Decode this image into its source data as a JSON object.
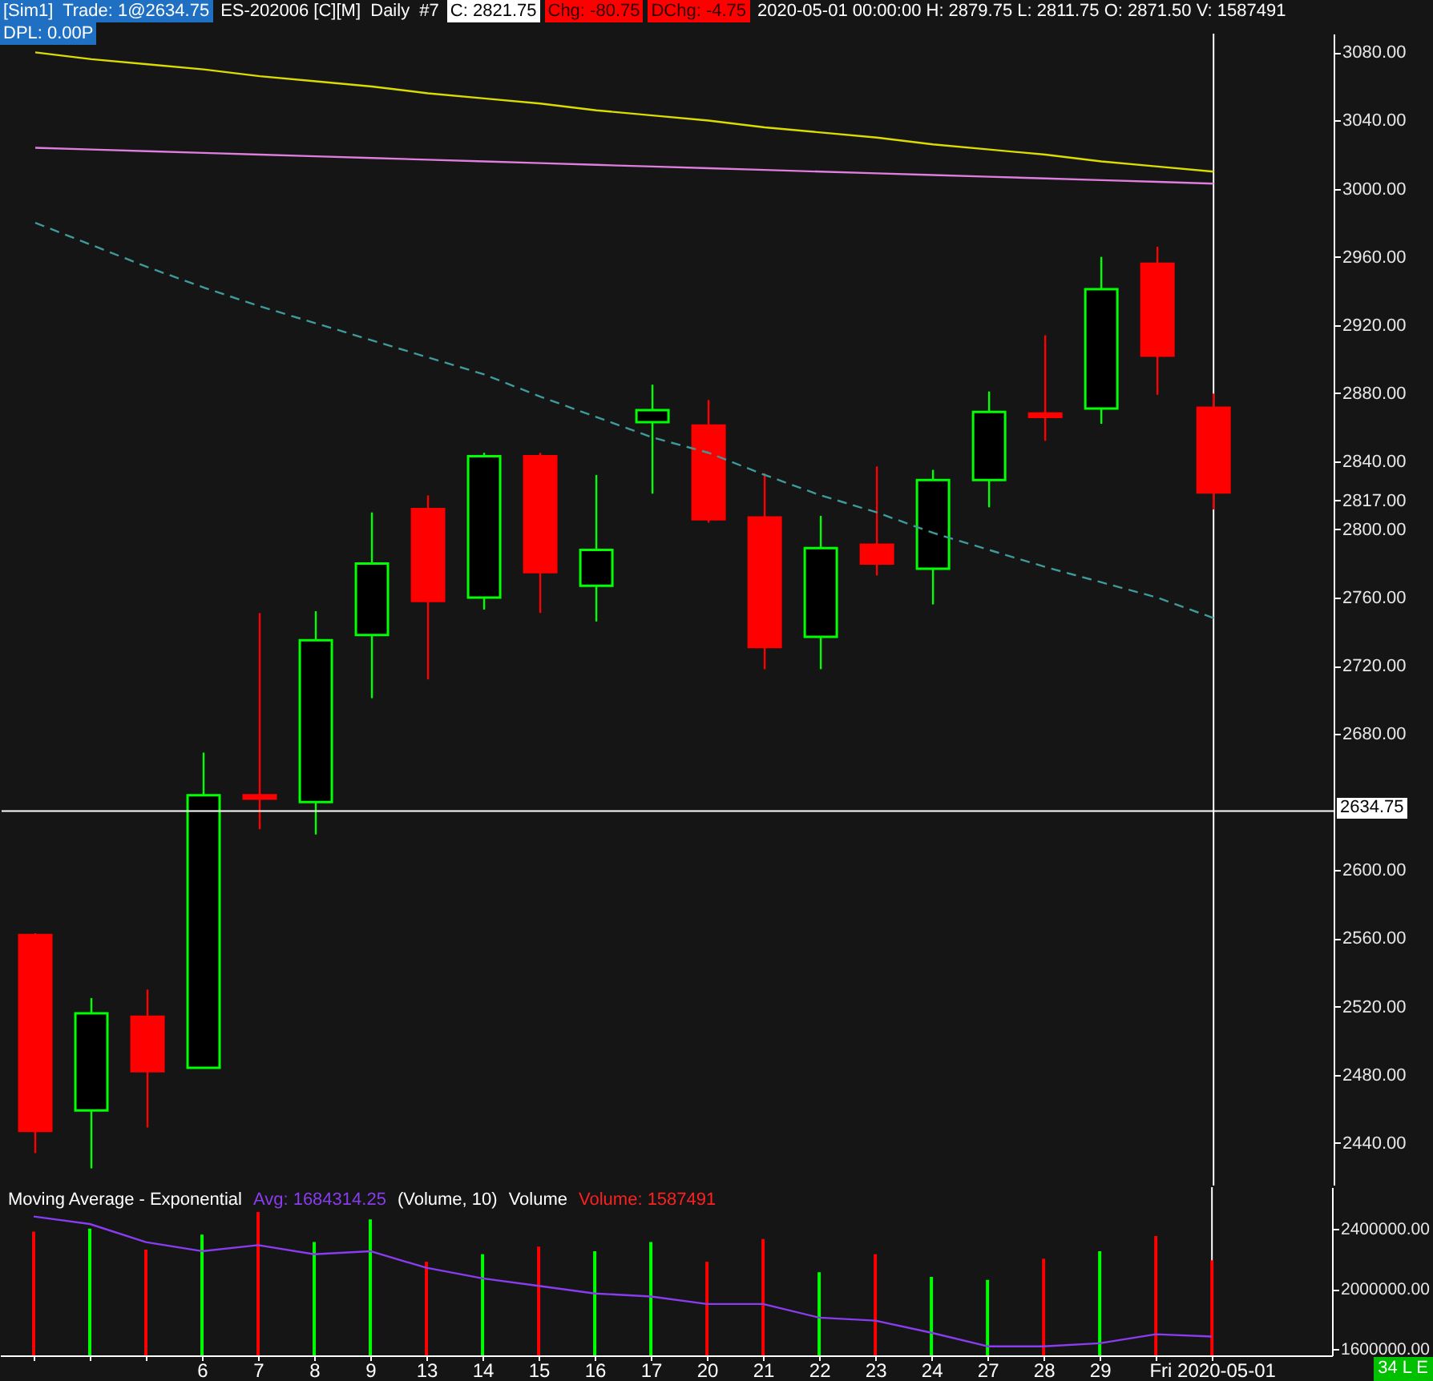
{
  "chart_data": [
    {
      "type": "candlestick",
      "title": "ES-202006 [C][M]  Daily  #7",
      "subtitle": "2020-05-01 00:00:00 H: 2879.75 L: 2811.75 O: 2871.50 V: 1587491",
      "categories": [
        null,
        null,
        null,
        "6",
        "7",
        "8",
        "9",
        "13",
        "14",
        "15",
        "16",
        "17",
        "20",
        "21",
        "22",
        "23",
        "24",
        "27",
        "28",
        "29",
        null,
        "Fri 2020-05-01"
      ],
      "ohlc": [
        [
          2562,
          2563,
          2434,
          2447
        ],
        [
          2459,
          2525,
          2425,
          2516
        ],
        [
          2514,
          2530,
          2449,
          2482
        ],
        [
          2484,
          2669,
          2484,
          2644
        ],
        [
          2644,
          2751,
          2624,
          2642
        ],
        [
          2640,
          2752,
          2621,
          2735
        ],
        [
          2738,
          2810,
          2701,
          2780
        ],
        [
          2812,
          2820,
          2712,
          2758
        ],
        [
          2760,
          2845,
          2753,
          2843
        ],
        [
          2843,
          2845,
          2751,
          2775
        ],
        [
          2767,
          2832,
          2746,
          2788
        ],
        [
          2863,
          2885,
          2821,
          2870
        ],
        [
          2861,
          2876,
          2804,
          2806
        ],
        [
          2807,
          2833,
          2718,
          2731
        ],
        [
          2737,
          2808,
          2718,
          2789
        ],
        [
          2791,
          2837,
          2773,
          2780
        ],
        [
          2777,
          2835,
          2756,
          2829
        ],
        [
          2829,
          2881,
          2813,
          2869
        ],
        [
          2868,
          2914,
          2852,
          2866
        ],
        [
          2871,
          2960,
          2862,
          2941
        ],
        [
          2956,
          2966,
          2879,
          2902
        ],
        [
          2871.5,
          2879.75,
          2811.75,
          2821.75
        ]
      ],
      "colors": [
        "#ff0000",
        "#00ff00",
        "#ff0000",
        "#00ff00",
        "#ff0000",
        "#00ff00",
        "#00ff00",
        "#ff0000",
        "#00ff00",
        "#ff0000",
        "#00ff00",
        "#00ff00",
        "#ff0000",
        "#ff0000",
        "#00ff00",
        "#ff0000",
        "#00ff00",
        "#00ff00",
        "#ff0000",
        "#00ff00",
        "#ff0000",
        "#ff0000"
      ],
      "series": [
        {
          "type": "line",
          "color": "#dcdc00",
          "values": [
            3080,
            3076,
            3073,
            3070,
            3066,
            3063,
            3060,
            3056,
            3053,
            3050,
            3046,
            3043,
            3040,
            3036,
            3033,
            3030,
            3026,
            3023,
            3020,
            3016,
            3013,
            3010
          ]
        },
        {
          "type": "line",
          "color": "#e07ee0",
          "values": [
            3024,
            3023,
            3022,
            3021,
            3020,
            3019,
            3018,
            3017,
            3016,
            3015,
            3014,
            3013,
            3012,
            3011,
            3010,
            3009,
            3008,
            3007,
            3006,
            3005,
            3004,
            3003
          ]
        },
        {
          "type": "line",
          "color": "#3f9a9a",
          "line_style": "dashed",
          "values": [
            2980,
            2967,
            2954,
            2942,
            2931,
            2921,
            2911,
            2901,
            2891,
            2878,
            2866,
            2854,
            2845,
            2832,
            2820,
            2810,
            2798,
            2788,
            2778,
            2769,
            2760,
            2748
          ]
        }
      ],
      "ylim": [
        2414,
        3091
      ],
      "yticks": [
        {
          "value": 3080,
          "label": "3080.00"
        },
        {
          "value": 3040,
          "label": "3040.00"
        },
        {
          "value": 3000,
          "label": "3000.00"
        },
        {
          "value": 2960,
          "label": "2960.00"
        },
        {
          "value": 2920,
          "label": "2920.00"
        },
        {
          "value": 2880,
          "label": "2880.00"
        },
        {
          "value": 2840,
          "label": "2840.00"
        },
        {
          "value": 2817,
          "label": "2817.00"
        },
        {
          "value": 2800,
          "label": "2800.00"
        },
        {
          "value": 2760,
          "label": "2760.00"
        },
        {
          "value": 2720,
          "label": "2720.00"
        },
        {
          "value": 2680,
          "label": "2680.00"
        },
        {
          "value": 2600,
          "label": "2600.00"
        },
        {
          "value": 2560,
          "label": "2560.00"
        },
        {
          "value": 2520,
          "label": "2520.00"
        },
        {
          "value": 2480,
          "label": "2480.00"
        },
        {
          "value": 2440,
          "label": "2440.00"
        }
      ],
      "ref_lines": [
        {
          "axis": "y",
          "value": 2634.75,
          "label": "2634.75",
          "color": "#ffffff"
        },
        {
          "axis": "x",
          "value": "Fri 2020-05-01",
          "color": "#ffffff"
        }
      ],
      "annotations": [
        "[Sim1]  Trade: 1@2634.75",
        "C: 2821.75",
        "Chg: -80.75",
        "DChg: -4.75",
        "DPL: 0.00P"
      ],
      "tick_labels": "y"
    },
    {
      "type": "bar",
      "categories": [
        null,
        null,
        null,
        "6",
        "7",
        "8",
        "9",
        "13",
        "14",
        "15",
        "16",
        "17",
        "20",
        "21",
        "22",
        "23",
        "24",
        "27",
        "28",
        "29",
        null,
        "Fri 2020-05-01"
      ],
      "series": [
        {
          "type": "bar",
          "colors": [
            "#ff0000",
            "#00ff00",
            "#ff0000",
            "#00ff00",
            "#ff0000",
            "#00ff00",
            "#00ff00",
            "#ff0000",
            "#00ff00",
            "#ff0000",
            "#00ff00",
            "#00ff00",
            "#ff0000",
            "#ff0000",
            "#00ff00",
            "#ff0000",
            "#00ff00",
            "#00ff00",
            "#ff0000",
            "#00ff00",
            "#ff0000",
            "#ff0000"
          ],
          "values": [
            2380000,
            2400000,
            2260000,
            2360000,
            2510000,
            2310000,
            2460000,
            2180000,
            2230000,
            2280000,
            2250000,
            2310000,
            2180000,
            2330000,
            2110000,
            2230000,
            2080000,
            2060000,
            2200000,
            2250000,
            2350000,
            2190000
          ]
        },
        {
          "type": "line",
          "color": "#8a3cf0",
          "values": [
            2480000,
            2430000,
            2310000,
            2250000,
            2290000,
            2230000,
            2250000,
            2140000,
            2070000,
            2020000,
            1970000,
            1950000,
            1900000,
            1900000,
            1810000,
            1790000,
            1710000,
            1620000,
            1620000,
            1640000,
            1700000,
            1684314.25
          ]
        }
      ],
      "ylim": [
        1560000,
        2674000
      ],
      "yticks": [
        {
          "value": 2400000,
          "label": "2400000.00"
        },
        {
          "value": 2000000,
          "label": "2000000.00"
        },
        {
          "value": 1600000,
          "label": "1600000.00"
        }
      ],
      "ref_lines": [
        {
          "axis": "x",
          "value": "Fri 2020-05-01",
          "color": "#ffffff"
        }
      ],
      "annotations": [
        "Moving Average - Exponential",
        "Avg: 1684314.25",
        "(Volume, 10)",
        "Volume",
        "Volume: 1587491",
        "34 L E"
      ]
    }
  ]
}
